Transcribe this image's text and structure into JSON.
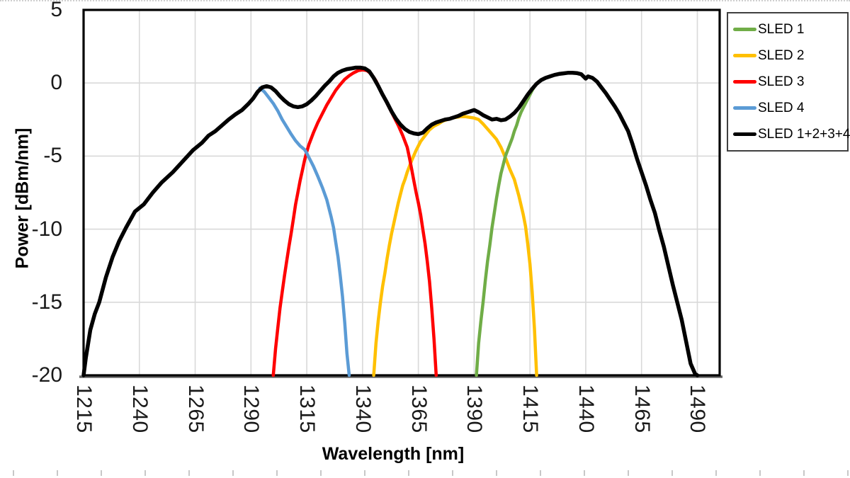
{
  "chart_data": {
    "type": "line",
    "title": "",
    "xlabel": "Wavelength [nm]",
    "ylabel": "Power [dBm/nm]",
    "xlim": [
      1215,
      1500
    ],
    "ylim": [
      -20,
      5
    ],
    "x_ticks": [
      1215,
      1240,
      1265,
      1290,
      1315,
      1340,
      1365,
      1390,
      1415,
      1440,
      1465,
      1490
    ],
    "y_ticks": [
      5,
      0,
      -5,
      -10,
      -15,
      -20
    ],
    "grid": true,
    "gridline_color": "#d9d9d9",
    "plot_border_color": "#000000",
    "bottom_axis_color": "#666666",
    "legend_position": "outside-right-top",
    "draw_order": [
      1,
      2,
      0,
      3,
      4
    ],
    "series": [
      {
        "name": "SLED 1",
        "color": "#70AD47",
        "points": [
          [
            1391,
            -20
          ],
          [
            1392,
            -17.8
          ],
          [
            1393,
            -16.3
          ],
          [
            1394,
            -15.0
          ],
          [
            1395,
            -13.5
          ],
          [
            1396,
            -12.2
          ],
          [
            1397,
            -11.1
          ],
          [
            1398,
            -9.9
          ],
          [
            1399,
            -8.9
          ],
          [
            1400,
            -7.9
          ],
          [
            1401,
            -7.0
          ],
          [
            1402,
            -6.2
          ],
          [
            1403,
            -5.6
          ],
          [
            1404,
            -5.0
          ],
          [
            1405,
            -4.6
          ],
          [
            1406,
            -4.2
          ],
          [
            1407,
            -3.8
          ],
          [
            1408,
            -3.3
          ],
          [
            1409,
            -2.9
          ],
          [
            1410,
            -2.4
          ],
          [
            1411,
            -2.0
          ],
          [
            1412,
            -1.7
          ],
          [
            1413,
            -1.4
          ],
          [
            1414,
            -1.1
          ],
          [
            1415,
            -0.8
          ],
          [
            1416,
            -0.5
          ],
          [
            1417,
            -0.25
          ],
          [
            1418,
            -0.05
          ],
          [
            1419,
            0.1
          ]
        ]
      },
      {
        "name": "SLED 2",
        "color": "#FFC000",
        "points": [
          [
            1345,
            -20
          ],
          [
            1346,
            -17.8
          ],
          [
            1347,
            -16.3
          ],
          [
            1348,
            -15.0
          ],
          [
            1349,
            -13.9
          ],
          [
            1350,
            -13.0
          ],
          [
            1351,
            -12.0
          ],
          [
            1352,
            -11.1
          ],
          [
            1353,
            -10.3
          ],
          [
            1354,
            -9.6
          ],
          [
            1355,
            -8.9
          ],
          [
            1356,
            -8.2
          ],
          [
            1357,
            -7.6
          ],
          [
            1358,
            -7.0
          ],
          [
            1359,
            -6.6
          ],
          [
            1360,
            -6.1
          ],
          [
            1362,
            -5.3
          ],
          [
            1364,
            -4.6
          ],
          [
            1366,
            -4.0
          ],
          [
            1368,
            -3.6
          ],
          [
            1370,
            -3.2
          ],
          [
            1372,
            -2.95
          ],
          [
            1374,
            -2.8
          ],
          [
            1376,
            -2.6
          ],
          [
            1378,
            -2.5
          ],
          [
            1380,
            -2.4
          ],
          [
            1382,
            -2.35
          ],
          [
            1384,
            -2.3
          ],
          [
            1386,
            -2.3
          ],
          [
            1388,
            -2.35
          ],
          [
            1390,
            -2.4
          ],
          [
            1392,
            -2.5
          ],
          [
            1394,
            -2.8
          ],
          [
            1396,
            -3.15
          ],
          [
            1398,
            -3.5
          ],
          [
            1400,
            -3.85
          ],
          [
            1402,
            -4.4
          ],
          [
            1404,
            -5.1
          ],
          [
            1406,
            -5.9
          ],
          [
            1408,
            -6.6
          ],
          [
            1410,
            -7.7
          ],
          [
            1412,
            -9.0
          ],
          [
            1413,
            -9.8
          ],
          [
            1414,
            -11.0
          ],
          [
            1415,
            -12.4
          ],
          [
            1416,
            -14.3
          ],
          [
            1417,
            -16.8
          ],
          [
            1418,
            -20
          ]
        ]
      },
      {
        "name": "SLED 3",
        "color": "#FF0000",
        "points": [
          [
            1300,
            -20
          ],
          [
            1301,
            -18.2
          ],
          [
            1302,
            -16.8
          ],
          [
            1303,
            -15.4
          ],
          [
            1304,
            -14.3
          ],
          [
            1305,
            -13.2
          ],
          [
            1306,
            -12.2
          ],
          [
            1307,
            -11.2
          ],
          [
            1308,
            -10.3
          ],
          [
            1309,
            -9.3
          ],
          [
            1310,
            -8.3
          ],
          [
            1311,
            -7.5
          ],
          [
            1312,
            -6.7
          ],
          [
            1313,
            -6.0
          ],
          [
            1314,
            -5.3
          ],
          [
            1315,
            -4.7
          ],
          [
            1316,
            -4.2
          ],
          [
            1317,
            -3.8
          ],
          [
            1318,
            -3.4
          ],
          [
            1320,
            -2.7
          ],
          [
            1322,
            -2.1
          ],
          [
            1324,
            -1.5
          ],
          [
            1326,
            -1.0
          ],
          [
            1328,
            -0.5
          ],
          [
            1330,
            -0.1
          ],
          [
            1332,
            0.25
          ],
          [
            1334,
            0.5
          ],
          [
            1336,
            0.7
          ],
          [
            1338,
            0.85
          ],
          [
            1340,
            0.9
          ],
          [
            1342,
            0.85
          ],
          [
            1344,
            0.6
          ],
          [
            1346,
            0.15
          ],
          [
            1348,
            -0.5
          ],
          [
            1350,
            -1.1
          ],
          [
            1352,
            -1.7
          ],
          [
            1354,
            -2.3
          ],
          [
            1356,
            -2.9
          ],
          [
            1358,
            -3.6
          ],
          [
            1360,
            -4.4
          ],
          [
            1361,
            -5.1
          ],
          [
            1362,
            -5.9
          ],
          [
            1363,
            -6.7
          ],
          [
            1364,
            -7.5
          ],
          [
            1365,
            -8.2
          ],
          [
            1366,
            -9.0
          ],
          [
            1367,
            -10.0
          ],
          [
            1368,
            -11.0
          ],
          [
            1369,
            -12.2
          ],
          [
            1370,
            -13.6
          ],
          [
            1371,
            -15.4
          ],
          [
            1372,
            -17.5
          ],
          [
            1373,
            -20
          ]
        ]
      },
      {
        "name": "SLED 4",
        "color": "#5B9BD5",
        "points": [
          [
            1294,
            -0.35
          ],
          [
            1296,
            -0.6
          ],
          [
            1298,
            -1.0
          ],
          [
            1300,
            -1.4
          ],
          [
            1302,
            -1.9
          ],
          [
            1304,
            -2.5
          ],
          [
            1306,
            -3.0
          ],
          [
            1308,
            -3.5
          ],
          [
            1310,
            -3.95
          ],
          [
            1312,
            -4.3
          ],
          [
            1314,
            -4.55
          ],
          [
            1315,
            -4.8
          ],
          [
            1316,
            -5.1
          ],
          [
            1318,
            -5.7
          ],
          [
            1320,
            -6.4
          ],
          [
            1322,
            -7.15
          ],
          [
            1324,
            -8.0
          ],
          [
            1326,
            -9.2
          ],
          [
            1327,
            -9.9
          ],
          [
            1328,
            -10.9
          ],
          [
            1329,
            -11.9
          ],
          [
            1330,
            -13.2
          ],
          [
            1331,
            -14.6
          ],
          [
            1332,
            -16.4
          ],
          [
            1333,
            -18.5
          ],
          [
            1334,
            -20
          ]
        ]
      },
      {
        "name": "SLED 1+2+3+4",
        "color": "#000000",
        "points": [
          [
            1215,
            -20
          ],
          [
            1216,
            -18.8
          ],
          [
            1218,
            -16.9
          ],
          [
            1220,
            -15.8
          ],
          [
            1222,
            -15.0
          ],
          [
            1225,
            -13.3
          ],
          [
            1228,
            -11.9
          ],
          [
            1231,
            -10.8
          ],
          [
            1234,
            -9.9
          ],
          [
            1238,
            -8.8
          ],
          [
            1242,
            -8.3
          ],
          [
            1246,
            -7.5
          ],
          [
            1250,
            -6.8
          ],
          [
            1255,
            -6.1
          ],
          [
            1258,
            -5.6
          ],
          [
            1261,
            -5.1
          ],
          [
            1264,
            -4.6
          ],
          [
            1268,
            -4.1
          ],
          [
            1271,
            -3.6
          ],
          [
            1274,
            -3.3
          ],
          [
            1277,
            -2.9
          ],
          [
            1280,
            -2.5
          ],
          [
            1283,
            -2.15
          ],
          [
            1286,
            -1.85
          ],
          [
            1289,
            -1.4
          ],
          [
            1291,
            -1.05
          ],
          [
            1293,
            -0.6
          ],
          [
            1295,
            -0.3
          ],
          [
            1297,
            -0.22
          ],
          [
            1299,
            -0.3
          ],
          [
            1301,
            -0.55
          ],
          [
            1303,
            -0.9
          ],
          [
            1305,
            -1.2
          ],
          [
            1307,
            -1.45
          ],
          [
            1309,
            -1.6
          ],
          [
            1311,
            -1.65
          ],
          [
            1313,
            -1.6
          ],
          [
            1315,
            -1.45
          ],
          [
            1317,
            -1.2
          ],
          [
            1319,
            -0.9
          ],
          [
            1321,
            -0.55
          ],
          [
            1323,
            -0.2
          ],
          [
            1325,
            0.1
          ],
          [
            1327,
            0.45
          ],
          [
            1329,
            0.7
          ],
          [
            1331,
            0.85
          ],
          [
            1333,
            0.95
          ],
          [
            1335,
            1.0
          ],
          [
            1337,
            1.05
          ],
          [
            1339,
            1.05
          ],
          [
            1341,
            1.0
          ],
          [
            1343,
            0.8
          ],
          [
            1345,
            0.35
          ],
          [
            1347,
            -0.2
          ],
          [
            1349,
            -0.8
          ],
          [
            1351,
            -1.35
          ],
          [
            1353,
            -1.95
          ],
          [
            1355,
            -2.45
          ],
          [
            1357,
            -2.85
          ],
          [
            1359,
            -3.15
          ],
          [
            1361,
            -3.35
          ],
          [
            1363,
            -3.45
          ],
          [
            1365,
            -3.5
          ],
          [
            1367,
            -3.4
          ],
          [
            1369,
            -3.1
          ],
          [
            1371,
            -2.85
          ],
          [
            1373,
            -2.7
          ],
          [
            1375,
            -2.6
          ],
          [
            1377,
            -2.5
          ],
          [
            1379,
            -2.45
          ],
          [
            1381,
            -2.35
          ],
          [
            1383,
            -2.25
          ],
          [
            1385,
            -2.1
          ],
          [
            1387,
            -2.0
          ],
          [
            1389,
            -1.9
          ],
          [
            1390,
            -1.85
          ],
          [
            1392,
            -2.0
          ],
          [
            1394,
            -2.2
          ],
          [
            1396,
            -2.35
          ],
          [
            1398,
            -2.5
          ],
          [
            1400,
            -2.45
          ],
          [
            1402,
            -2.55
          ],
          [
            1404,
            -2.5
          ],
          [
            1406,
            -2.3
          ],
          [
            1408,
            -2.05
          ],
          [
            1410,
            -1.7
          ],
          [
            1412,
            -1.25
          ],
          [
            1414,
            -0.8
          ],
          [
            1416,
            -0.4
          ],
          [
            1418,
            -0.05
          ],
          [
            1420,
            0.2
          ],
          [
            1422,
            0.35
          ],
          [
            1424,
            0.45
          ],
          [
            1426,
            0.55
          ],
          [
            1428,
            0.62
          ],
          [
            1430,
            0.66
          ],
          [
            1432,
            0.7
          ],
          [
            1434,
            0.7
          ],
          [
            1436,
            0.68
          ],
          [
            1438,
            0.6
          ],
          [
            1440,
            0.3
          ],
          [
            1441,
            0.45
          ],
          [
            1443,
            0.35
          ],
          [
            1445,
            0.1
          ],
          [
            1447,
            -0.3
          ],
          [
            1449,
            -0.7
          ],
          [
            1451,
            -1.15
          ],
          [
            1453,
            -1.6
          ],
          [
            1455,
            -2.1
          ],
          [
            1457,
            -2.7
          ],
          [
            1459,
            -3.3
          ],
          [
            1461,
            -4.2
          ],
          [
            1463,
            -5.2
          ],
          [
            1465,
            -6.1
          ],
          [
            1467,
            -7.0
          ],
          [
            1469,
            -8.0
          ],
          [
            1471,
            -8.9
          ],
          [
            1473,
            -10.1
          ],
          [
            1475,
            -11.2
          ],
          [
            1477,
            -12.5
          ],
          [
            1479,
            -13.8
          ],
          [
            1481,
            -15.0
          ],
          [
            1483,
            -16.2
          ],
          [
            1485,
            -17.7
          ],
          [
            1487,
            -19.2
          ],
          [
            1489,
            -19.9
          ],
          [
            1490,
            -20
          ]
        ]
      }
    ]
  },
  "legend": {
    "items": [
      "SLED 1",
      "SLED 2",
      "SLED 3",
      "SLED 4",
      "SLED 1+2+3+4"
    ]
  }
}
